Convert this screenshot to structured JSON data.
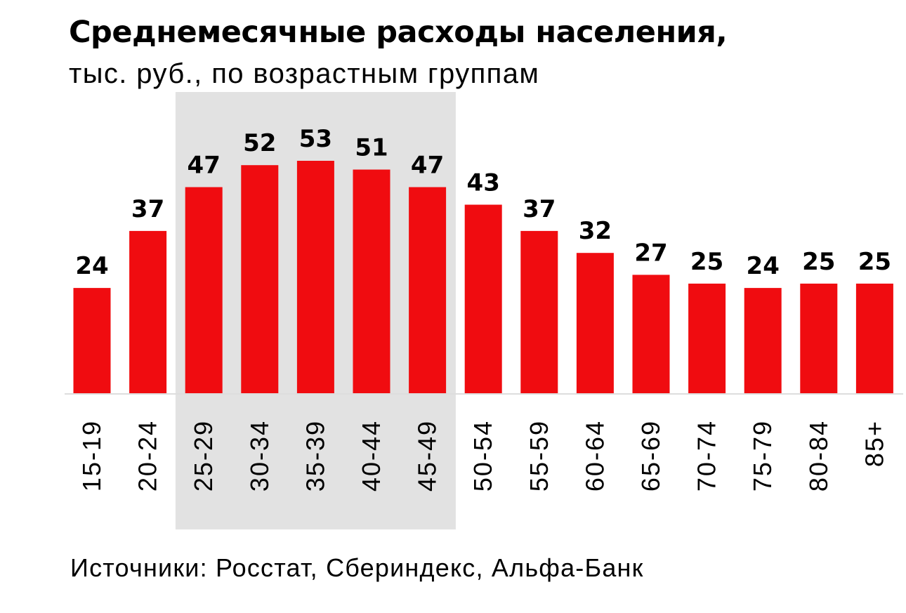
{
  "title": "Среднемесячные расходы населения,",
  "subtitle": "тыс. руб., по возрастным группам",
  "source": "Источники: Росстат, Сбериндекс, Альфа-Банк",
  "colors": {
    "bar": "#f00c10",
    "highlight": "#e2e2e2",
    "axis": "#dddddd",
    "text": "#000000"
  },
  "chart_data": {
    "type": "bar",
    "title": "Среднемесячные расходы населения,",
    "subtitle": "тыс. руб., по возрастным группам",
    "xlabel": "",
    "ylabel": "",
    "categories": [
      "15-19",
      "20-24",
      "25-29",
      "30-34",
      "35-39",
      "40-44",
      "45-49",
      "50-54",
      "55-59",
      "60-64",
      "65-69",
      "70-74",
      "75-79",
      "80-84",
      "85+"
    ],
    "values": [
      24,
      37,
      47,
      52,
      53,
      51,
      47,
      43,
      37,
      32,
      27,
      25,
      24,
      25,
      25
    ],
    "highlighted_categories": [
      "25-29",
      "30-34",
      "35-39",
      "40-44",
      "45-49"
    ],
    "grid": false,
    "legend": "none",
    "data_labels": true,
    "ylim": [
      0,
      53
    ]
  }
}
